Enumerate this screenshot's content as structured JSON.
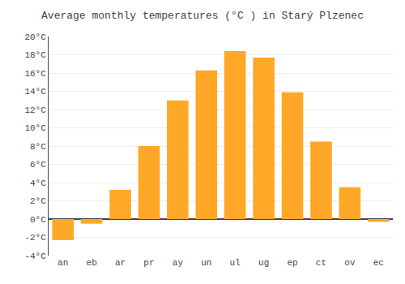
{
  "chart_data": {
    "type": "bar",
    "title": "Average monthly temperatures (°C ) in Starý Plzenec",
    "categories": [
      "an",
      "eb",
      "ar",
      "pr",
      "ay",
      "un",
      "ul",
      "ug",
      "ep",
      "ct",
      "ov",
      "ec"
    ],
    "values": [
      -2.3,
      -0.5,
      3.2,
      8.0,
      13.0,
      16.3,
      18.4,
      17.7,
      13.9,
      8.5,
      3.5,
      -0.3
    ],
    "color": "#FFA726",
    "ylim": [
      -4,
      20
    ],
    "yticks": [
      {
        "value": -4,
        "label": "-4°C"
      },
      {
        "value": -2,
        "label": "-2°C"
      },
      {
        "value": 0,
        "label": "0°C"
      },
      {
        "value": 2,
        "label": "2°C"
      },
      {
        "value": 4,
        "label": "4°C"
      },
      {
        "value": 6,
        "label": "6°C"
      },
      {
        "value": 8,
        "label": "8°C"
      },
      {
        "value": 10,
        "label": "10°C"
      },
      {
        "value": 12,
        "label": "12°C"
      },
      {
        "value": 14,
        "label": "14°C"
      },
      {
        "value": 16,
        "label": "16°C"
      },
      {
        "value": 18,
        "label": "18°C"
      },
      {
        "value": 20,
        "label": "20°C"
      }
    ],
    "grid": true
  }
}
